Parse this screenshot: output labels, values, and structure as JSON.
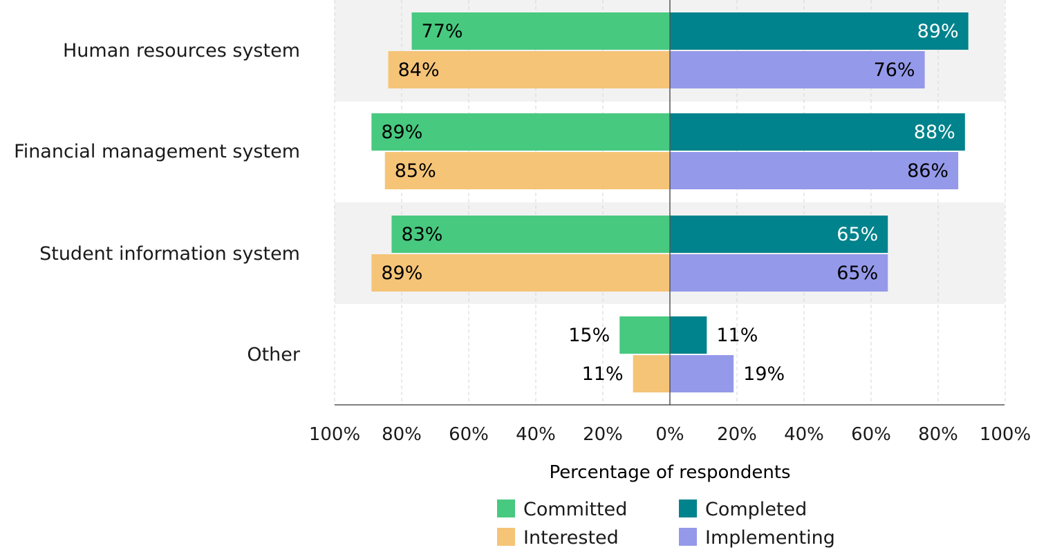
{
  "chart_data": {
    "type": "bar",
    "orientation": "horizontal-diverging",
    "categories": [
      "Human resources system",
      "Financial management system",
      "Student information system",
      "Other"
    ],
    "series": [
      {
        "name": "Committed",
        "side": "left",
        "row": "top",
        "color": "#47c97f",
        "label_color": "#000000",
        "values": [
          77,
          89,
          83,
          15
        ]
      },
      {
        "name": "Interested",
        "side": "left",
        "row": "bottom",
        "color": "#f5c477",
        "label_color": "#000000",
        "values": [
          84,
          85,
          89,
          11
        ]
      },
      {
        "name": "Completed",
        "side": "right",
        "row": "top",
        "color": "#00838c",
        "label_color": "#ffffff",
        "values": [
          89,
          88,
          65,
          11
        ]
      },
      {
        "name": "Implementing",
        "side": "right",
        "row": "bottom",
        "color": "#9499e9",
        "label_color": "#000000",
        "values": [
          76,
          86,
          65,
          19
        ]
      }
    ],
    "data_labels": [
      [
        "77%",
        "84%",
        "89%",
        "76%"
      ],
      [
        "89%",
        "85%",
        "88%",
        "86%"
      ],
      [
        "83%",
        "89%",
        "65%",
        "65%"
      ],
      [
        "15%",
        "11%",
        "11%",
        "19%"
      ]
    ],
    "xticks": [
      "100%",
      "80%",
      "60%",
      "40%",
      "20%",
      "0%",
      "20%",
      "40%",
      "60%",
      "80%",
      "100%"
    ],
    "xlim": [
      -100,
      100
    ],
    "xlabel": "Percentage of respondents",
    "grid": "vertical dashed",
    "band_color": "#f2f2f2",
    "legend": {
      "position": "bottom",
      "columns": [
        [
          "Committed",
          "Interested"
        ],
        [
          "Completed",
          "Implementing"
        ]
      ]
    }
  }
}
